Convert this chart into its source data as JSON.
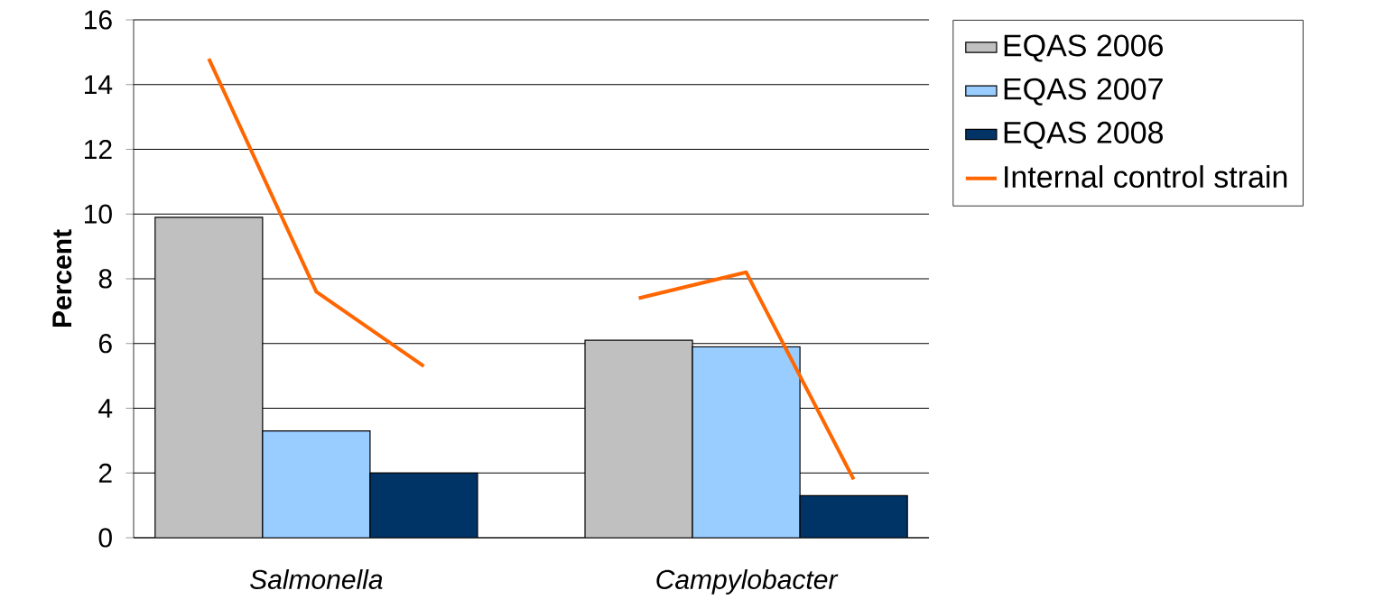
{
  "chart_data": {
    "type": "bar",
    "ylabel": "Percent",
    "categories": [
      null,
      "Salmonella",
      null,
      null,
      null,
      "Campylobacter",
      null
    ],
    "series": [
      {
        "name": "EQAS 2006",
        "color": "#c0c0c0",
        "values": [
          9.9,
          null,
          null,
          null,
          6.1,
          null,
          null
        ]
      },
      {
        "name": "EQAS 2007",
        "color": "#99ccff",
        "values": [
          null,
          3.3,
          null,
          null,
          null,
          5.9,
          null
        ]
      },
      {
        "name": "EQAS 2008",
        "color": "#003366",
        "values": [
          null,
          null,
          2.0,
          null,
          null,
          null,
          1.3
        ]
      },
      {
        "name": "Internal control strain",
        "type": "line",
        "color": "#ff6600",
        "values": [
          14.8,
          7.6,
          5.3,
          null,
          7.4,
          8.2,
          1.8
        ]
      }
    ],
    "ylim": [
      0,
      16
    ],
    "yticks": [
      0,
      2,
      4,
      6,
      8,
      10,
      12,
      14,
      16
    ],
    "grid": "y",
    "legend": "right"
  }
}
